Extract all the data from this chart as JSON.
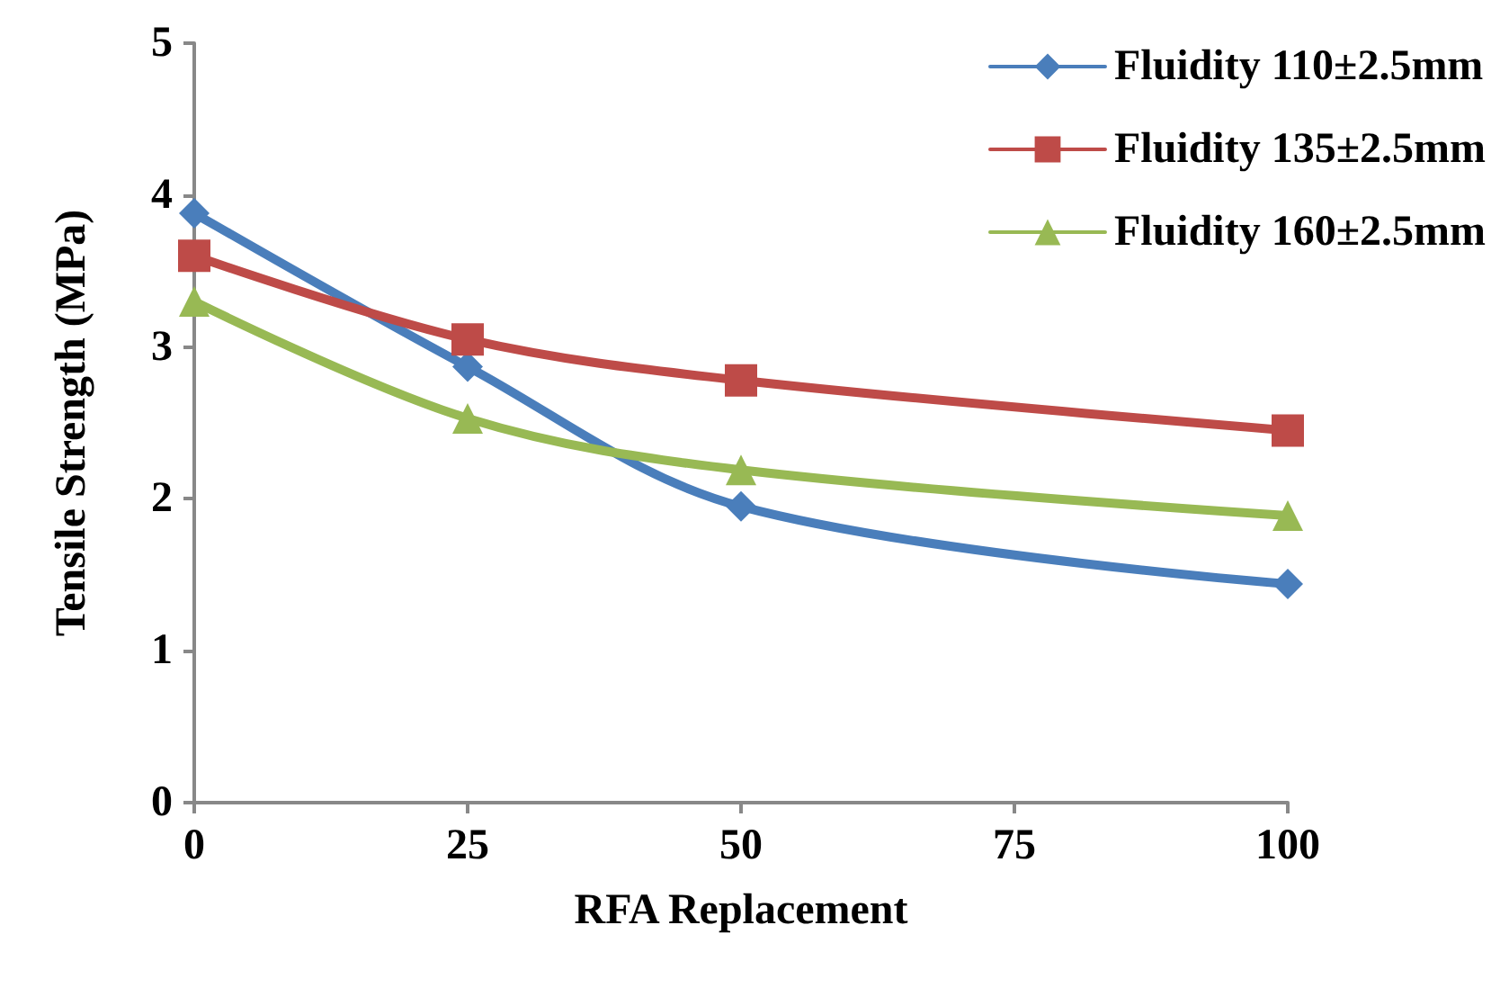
{
  "chart_data": {
    "type": "line",
    "xlabel": "RFA Replacement",
    "ylabel": "Tensile Strength (MPa)",
    "x": [
      0,
      25,
      50,
      100
    ],
    "series": [
      {
        "name": "Fluidity 110±2.5mm",
        "color": "#4a7ebb",
        "values": [
          3.88,
          2.87,
          1.95,
          1.44
        ],
        "marker": "diamond"
      },
      {
        "name": "Fluidity 135±2.5mm",
        "color": "#be4b48",
        "values": [
          3.6,
          3.05,
          2.78,
          2.45
        ],
        "marker": "square"
      },
      {
        "name": "Fluidity 160±2.5mm",
        "color": "#98b954",
        "values": [
          3.3,
          2.53,
          2.19,
          1.89
        ],
        "marker": "triangle"
      }
    ],
    "xlim": [
      0,
      100
    ],
    "xticks": [
      0,
      25,
      50,
      75,
      100
    ],
    "ylim": [
      0,
      5
    ],
    "yticks": [
      0,
      1,
      2,
      3,
      4,
      5
    ],
    "grid": false,
    "legend": "top right",
    "line_style": "solid"
  }
}
